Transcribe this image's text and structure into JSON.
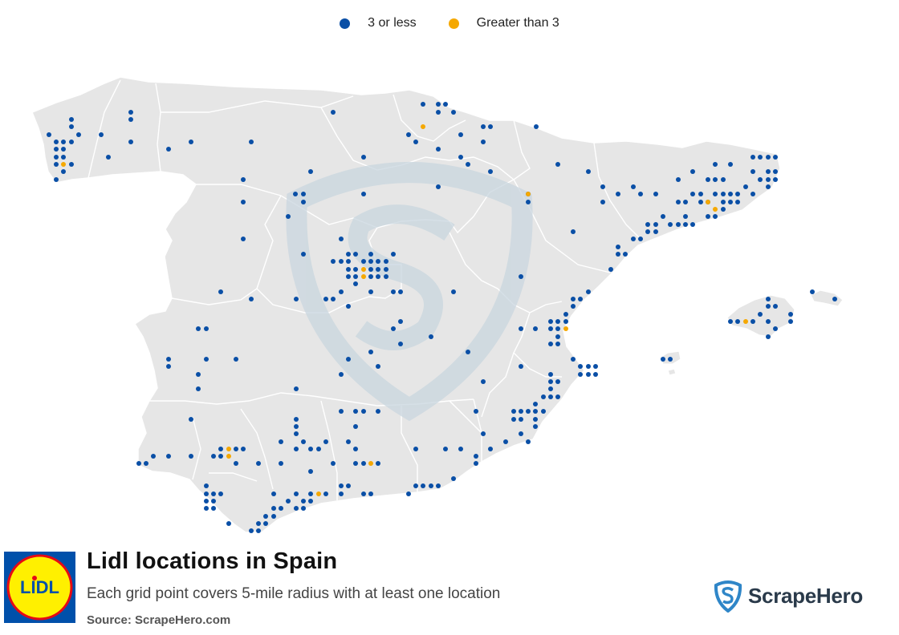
{
  "legend": {
    "items": [
      {
        "label": "3 or less",
        "color": "#0a4fa6"
      },
      {
        "label": "Greater than 3",
        "color": "#f5a800"
      }
    ]
  },
  "title": "Lidl locations in Spain",
  "subtitle": "Each grid point covers 5-mile radius with at least one location",
  "source": "Source: ScrapeHero.com",
  "brand": {
    "name": "ScrapeHero",
    "icon": "shield-s-icon",
    "color": "#2f86c8"
  },
  "logo": {
    "text": "LIDL",
    "colors": {
      "outer": "#0050aa",
      "inner": "#fff000",
      "ring": "#e60a14"
    }
  },
  "map_colors": {
    "land": "#e6e6e6",
    "border": "#ffffff",
    "watermark": "#c9d6df"
  },
  "points_low": [
    [
      61,
      168
    ],
    [
      70,
      177
    ],
    [
      79,
      177
    ],
    [
      89,
      177
    ],
    [
      70,
      186
    ],
    [
      79,
      186
    ],
    [
      70,
      196
    ],
    [
      79,
      196
    ],
    [
      70,
      205
    ],
    [
      89,
      205
    ],
    [
      79,
      214
    ],
    [
      70,
      224
    ],
    [
      89,
      149
    ],
    [
      89,
      158
    ],
    [
      98,
      168
    ],
    [
      126,
      168
    ],
    [
      135,
      196
    ],
    [
      163,
      140
    ],
    [
      163,
      149
    ],
    [
      163,
      177
    ],
    [
      210,
      186
    ],
    [
      238,
      177
    ],
    [
      313,
      177
    ],
    [
      415,
      140
    ],
    [
      527,
      130
    ],
    [
      546,
      130
    ],
    [
      555,
      130
    ],
    [
      546,
      140
    ],
    [
      565,
      140
    ],
    [
      574,
      168
    ],
    [
      602,
      158
    ],
    [
      611,
      158
    ],
    [
      602,
      177
    ],
    [
      509,
      168
    ],
    [
      518,
      177
    ],
    [
      546,
      186
    ],
    [
      574,
      196
    ],
    [
      583,
      205
    ],
    [
      611,
      214
    ],
    [
      668,
      158
    ],
    [
      303,
      224
    ],
    [
      387,
      214
    ],
    [
      453,
      196
    ],
    [
      303,
      252
    ],
    [
      368,
      242
    ],
    [
      378,
      242
    ],
    [
      378,
      252
    ],
    [
      453,
      242
    ],
    [
      546,
      233
    ],
    [
      359,
      270
    ],
    [
      658,
      242
    ],
    [
      658,
      252
    ],
    [
      303,
      298
    ],
    [
      378,
      317
    ],
    [
      425,
      298
    ],
    [
      434,
      317
    ],
    [
      443,
      317
    ],
    [
      462,
      317
    ],
    [
      415,
      326
    ],
    [
      425,
      326
    ],
    [
      434,
      326
    ],
    [
      453,
      326
    ],
    [
      462,
      326
    ],
    [
      471,
      326
    ],
    [
      481,
      326
    ],
    [
      490,
      317
    ],
    [
      434,
      336
    ],
    [
      443,
      336
    ],
    [
      462,
      336
    ],
    [
      471,
      336
    ],
    [
      481,
      336
    ],
    [
      434,
      345
    ],
    [
      443,
      345
    ],
    [
      462,
      345
    ],
    [
      471,
      345
    ],
    [
      481,
      345
    ],
    [
      443,
      354
    ],
    [
      462,
      364
    ],
    [
      490,
      364
    ],
    [
      425,
      364
    ],
    [
      499,
      364
    ],
    [
      565,
      364
    ],
    [
      369,
      373
    ],
    [
      406,
      373
    ],
    [
      415,
      373
    ],
    [
      434,
      382
    ],
    [
      313,
      373
    ],
    [
      275,
      364
    ],
    [
      649,
      345
    ],
    [
      695,
      205
    ],
    [
      733,
      214
    ],
    [
      751,
      233
    ],
    [
      770,
      242
    ],
    [
      789,
      233
    ],
    [
      798,
      242
    ],
    [
      817,
      242
    ],
    [
      845,
      224
    ],
    [
      863,
      214
    ],
    [
      891,
      205
    ],
    [
      910,
      205
    ],
    [
      938,
      196
    ],
    [
      947,
      196
    ],
    [
      957,
      196
    ],
    [
      966,
      196
    ],
    [
      882,
      224
    ],
    [
      891,
      224
    ],
    [
      901,
      224
    ],
    [
      938,
      214
    ],
    [
      957,
      214
    ],
    [
      966,
      214
    ],
    [
      947,
      224
    ],
    [
      957,
      224
    ],
    [
      966,
      224
    ],
    [
      957,
      233
    ],
    [
      938,
      242
    ],
    [
      929,
      233
    ],
    [
      910,
      242
    ],
    [
      919,
      242
    ],
    [
      901,
      242
    ],
    [
      901,
      252
    ],
    [
      910,
      252
    ],
    [
      919,
      252
    ],
    [
      891,
      242
    ],
    [
      873,
      242
    ],
    [
      863,
      242
    ],
    [
      845,
      252
    ],
    [
      854,
      252
    ],
    [
      873,
      252
    ],
    [
      882,
      252
    ],
    [
      901,
      261
    ],
    [
      891,
      270
    ],
    [
      882,
      270
    ],
    [
      854,
      270
    ],
    [
      826,
      270
    ],
    [
      817,
      280
    ],
    [
      807,
      280
    ],
    [
      807,
      289
    ],
    [
      817,
      289
    ],
    [
      835,
      280
    ],
    [
      845,
      280
    ],
    [
      854,
      280
    ],
    [
      863,
      280
    ],
    [
      751,
      252
    ],
    [
      714,
      289
    ],
    [
      798,
      298
    ],
    [
      789,
      298
    ],
    [
      770,
      308
    ],
    [
      770,
      317
    ],
    [
      779,
      317
    ],
    [
      761,
      336
    ],
    [
      733,
      364
    ],
    [
      723,
      373
    ],
    [
      714,
      373
    ],
    [
      714,
      382
    ],
    [
      705,
      392
    ],
    [
      705,
      401
    ],
    [
      695,
      401
    ],
    [
      686,
      401
    ],
    [
      686,
      410
    ],
    [
      695,
      410
    ],
    [
      695,
      420
    ],
    [
      686,
      429
    ],
    [
      695,
      429
    ],
    [
      667,
      410
    ],
    [
      649,
      410
    ],
    [
      714,
      448
    ],
    [
      723,
      457
    ],
    [
      733,
      457
    ],
    [
      742,
      457
    ],
    [
      723,
      467
    ],
    [
      733,
      467
    ],
    [
      742,
      467
    ],
    [
      686,
      467
    ],
    [
      686,
      476
    ],
    [
      695,
      476
    ],
    [
      686,
      485
    ],
    [
      677,
      495
    ],
    [
      686,
      495
    ],
    [
      695,
      495
    ],
    [
      667,
      504
    ],
    [
      649,
      513
    ],
    [
      640,
      513
    ],
    [
      658,
      513
    ],
    [
      667,
      513
    ],
    [
      677,
      513
    ],
    [
      640,
      523
    ],
    [
      649,
      523
    ],
    [
      667,
      523
    ],
    [
      667,
      532
    ],
    [
      649,
      541
    ],
    [
      658,
      551
    ],
    [
      630,
      551
    ],
    [
      611,
      560
    ],
    [
      602,
      541
    ],
    [
      593,
      513
    ],
    [
      649,
      457
    ],
    [
      602,
      476
    ],
    [
      583,
      439
    ],
    [
      1012,
      364
    ],
    [
      1040,
      373
    ],
    [
      957,
      373
    ],
    [
      957,
      382
    ],
    [
      966,
      382
    ],
    [
      947,
      392
    ],
    [
      985,
      392
    ],
    [
      910,
      401
    ],
    [
      919,
      401
    ],
    [
      938,
      401
    ],
    [
      957,
      401
    ],
    [
      985,
      401
    ],
    [
      966,
      410
    ],
    [
      957,
      420
    ],
    [
      826,
      448
    ],
    [
      835,
      448
    ],
    [
      247,
      410
    ],
    [
      257,
      410
    ],
    [
      210,
      448
    ],
    [
      210,
      457
    ],
    [
      257,
      448
    ],
    [
      294,
      448
    ],
    [
      247,
      467
    ],
    [
      247,
      485
    ],
    [
      238,
      523
    ],
    [
      369,
      485
    ],
    [
      369,
      523
    ],
    [
      369,
      532
    ],
    [
      369,
      541
    ],
    [
      425,
      513
    ],
    [
      443,
      513
    ],
    [
      453,
      513
    ],
    [
      471,
      513
    ],
    [
      443,
      532
    ],
    [
      425,
      467
    ],
    [
      434,
      448
    ],
    [
      462,
      439
    ],
    [
      471,
      457
    ],
    [
      499,
      401
    ],
    [
      490,
      410
    ],
    [
      499,
      429
    ],
    [
      537,
      420
    ],
    [
      173,
      578
    ],
    [
      182,
      578
    ],
    [
      191,
      569
    ],
    [
      210,
      569
    ],
    [
      238,
      569
    ],
    [
      266,
      569
    ],
    [
      275,
      560
    ],
    [
      275,
      569
    ],
    [
      294,
      560
    ],
    [
      303,
      560
    ],
    [
      294,
      578
    ],
    [
      322,
      578
    ],
    [
      350,
      578
    ],
    [
      350,
      551
    ],
    [
      369,
      560
    ],
    [
      378,
      551
    ],
    [
      387,
      560
    ],
    [
      397,
      560
    ],
    [
      406,
      551
    ],
    [
      387,
      588
    ],
    [
      415,
      578
    ],
    [
      434,
      551
    ],
    [
      443,
      560
    ],
    [
      443,
      578
    ],
    [
      453,
      578
    ],
    [
      471,
      578
    ],
    [
      518,
      560
    ],
    [
      555,
      560
    ],
    [
      574,
      560
    ],
    [
      593,
      569
    ],
    [
      593,
      578
    ],
    [
      565,
      597
    ],
    [
      546,
      606
    ],
    [
      537,
      606
    ],
    [
      527,
      606
    ],
    [
      518,
      606
    ],
    [
      509,
      616
    ],
    [
      462,
      616
    ],
    [
      453,
      616
    ],
    [
      434,
      606
    ],
    [
      425,
      606
    ],
    [
      425,
      616
    ],
    [
      406,
      616
    ],
    [
      387,
      616
    ],
    [
      378,
      625
    ],
    [
      387,
      625
    ],
    [
      369,
      616
    ],
    [
      369,
      634
    ],
    [
      378,
      634
    ],
    [
      359,
      625
    ],
    [
      350,
      634
    ],
    [
      341,
      634
    ],
    [
      341,
      644
    ],
    [
      331,
      644
    ],
    [
      322,
      653
    ],
    [
      331,
      653
    ],
    [
      313,
      662
    ],
    [
      322,
      662
    ],
    [
      341,
      616
    ],
    [
      285,
      653
    ],
    [
      257,
      606
    ],
    [
      257,
      616
    ],
    [
      266,
      616
    ],
    [
      275,
      616
    ],
    [
      257,
      625
    ],
    [
      266,
      625
    ],
    [
      257,
      634
    ],
    [
      266,
      634
    ]
  ],
  "points_high": [
    [
      79,
      205
    ],
    [
      527,
      158
    ],
    [
      658,
      242
    ],
    [
      882,
      252
    ],
    [
      891,
      261
    ],
    [
      453,
      336
    ],
    [
      453,
      345
    ],
    [
      705,
      410
    ],
    [
      929,
      401
    ],
    [
      285,
      560
    ],
    [
      285,
      569
    ],
    [
      462,
      578
    ],
    [
      397,
      616
    ]
  ]
}
